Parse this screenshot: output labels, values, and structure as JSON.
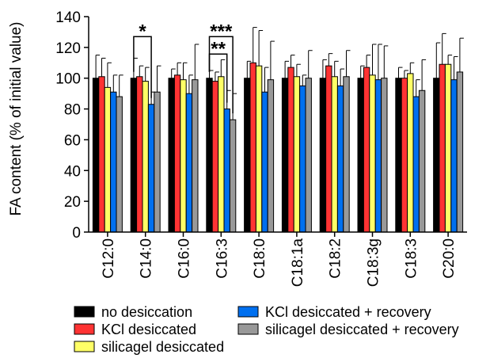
{
  "chart_data": {
    "type": "bar",
    "title": "",
    "xlabel": "",
    "ylabel": "FA content (% of initial value)",
    "ylim": [
      0,
      140
    ],
    "yticks": [
      0,
      20,
      40,
      60,
      80,
      100,
      120,
      140
    ],
    "grid": false,
    "legend_position": "bottom",
    "categories": [
      "C12:0",
      "C14:0",
      "C16:0",
      "C16:3",
      "C18:0",
      "C18:1a",
      "C18:2",
      "C18:3g",
      "C18:3",
      "C20:0"
    ],
    "series": [
      {
        "name": "no desiccation",
        "color": "#000000",
        "values": [
          100,
          100,
          100,
          100,
          100,
          100,
          100,
          100,
          100,
          100
        ],
        "errors": [
          15,
          13,
          6,
          5,
          11,
          11,
          12,
          8,
          7,
          23
        ]
      },
      {
        "name": "KCl desiccated",
        "color": "#ff3333",
        "values": [
          101,
          101,
          102,
          98,
          110,
          107,
          108,
          107,
          100,
          109
        ],
        "errors": [
          12,
          7,
          8,
          6,
          23,
          8,
          8,
          8,
          5,
          20
        ]
      },
      {
        "name": "silicagel desiccated",
        "color": "#ffff66",
        "values": [
          94,
          98,
          99,
          101,
          108,
          101,
          101,
          102,
          103,
          109
        ],
        "errors": [
          16,
          9,
          11,
          11,
          23,
          8,
          10,
          20,
          7,
          6
        ]
      },
      {
        "name": "KCl desiccated + recovery",
        "color": "#0070f0",
        "values": [
          91,
          83,
          90,
          80,
          91,
          95,
          95,
          99,
          88,
          99
        ],
        "errors": [
          11,
          8,
          12,
          12,
          16,
          7,
          11,
          23,
          11,
          15
        ]
      },
      {
        "name": "silicagel desiccated + recovery",
        "color": "#999999",
        "values": [
          88,
          91,
          99,
          73,
          99,
          100,
          101,
          100,
          92,
          104
        ],
        "errors": [
          14,
          17,
          23,
          17,
          25,
          18,
          17,
          21,
          20,
          22
        ]
      }
    ],
    "annotations": [
      {
        "text": "*",
        "category": "C14:0",
        "from_series": 0,
        "to_series": 3
      },
      {
        "text": "***",
        "category": "C16:3",
        "from_series": 0,
        "to_series": 4
      },
      {
        "text": "**",
        "category": "C16:3",
        "from_series": 0,
        "to_series": 3
      }
    ]
  }
}
